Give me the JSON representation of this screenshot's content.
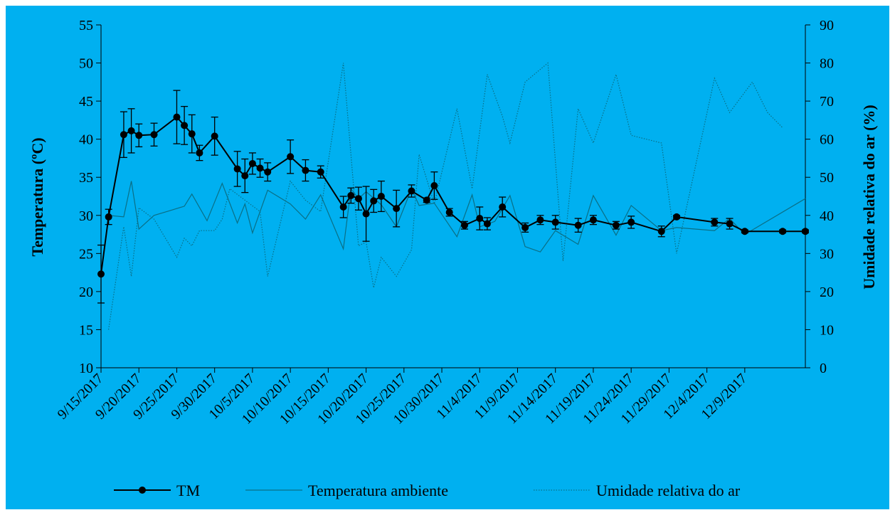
{
  "colors": {
    "background": "#00b0f0",
    "tm": "#000000",
    "temp_ambiente": "#0a6f86",
    "umidade": "#0a6f86"
  },
  "chart_data": {
    "type": "line",
    "title": "",
    "ylabel_left": "Temperatura (ºC)",
    "ylabel_right": "Umidade relativa do ar (%)",
    "ylim_left": [
      10,
      55
    ],
    "yticks_left": [
      "10",
      "15",
      "20",
      "25",
      "30",
      "35",
      "40",
      "45",
      "50",
      "55"
    ],
    "ylim_right": [
      0,
      90
    ],
    "yticks_right": [
      "0",
      "10",
      "20",
      "30",
      "40",
      "50",
      "60",
      "70",
      "80",
      "90"
    ],
    "xlim_days_from_0915": [
      0,
      93
    ],
    "x_tick_labels": [
      "9/15/2017",
      "9/20/2017",
      "9/25/2017",
      "9/30/2017",
      "10/5/2017",
      "10/10/2017",
      "10/15/2017",
      "10/20/2017",
      "10/25/2017",
      "10/30/2017",
      "11/4/2017",
      "11/9/2017",
      "11/14/2017",
      "11/19/2017",
      "11/24/2017",
      "11/29/2017",
      "12/4/2017",
      "12/9/2017"
    ],
    "legend_position": "bottom",
    "series": [
      {
        "name": "TM",
        "style": "solid-markers-errorbars",
        "points": [
          {
            "x": "9/15/2017",
            "y": 22.3,
            "err": 3.8
          },
          {
            "x": "9/16/2017",
            "y": 29.8,
            "err": 1.0
          },
          {
            "x": "9/18/2017",
            "y": 40.6,
            "err": 3.0
          },
          {
            "x": "9/19/2017",
            "y": 41.1,
            "err": 2.9
          },
          {
            "x": "9/20/2017",
            "y": 40.5,
            "err": 1.5
          },
          {
            "x": "9/22/2017",
            "y": 40.6,
            "err": 1.5
          },
          {
            "x": "9/25/2017",
            "y": 42.9,
            "err": 3.5
          },
          {
            "x": "9/26/2017",
            "y": 41.8,
            "err": 2.5
          },
          {
            "x": "9/27/2017",
            "y": 40.7,
            "err": 2.5
          },
          {
            "x": "9/28/2017",
            "y": 38.2,
            "err": 1.0
          },
          {
            "x": "9/30/2017",
            "y": 40.4,
            "err": 2.5
          },
          {
            "x": "10/3/2017",
            "y": 36.1,
            "err": 2.3
          },
          {
            "x": "10/4/2017",
            "y": 35.2,
            "err": 2.2
          },
          {
            "x": "10/5/2017",
            "y": 36.8,
            "err": 1.4
          },
          {
            "x": "10/6/2017",
            "y": 36.2,
            "err": 1.2
          },
          {
            "x": "10/7/2017",
            "y": 35.7,
            "err": 1.2
          },
          {
            "x": "10/10/2017",
            "y": 37.7,
            "err": 2.2
          },
          {
            "x": "10/12/2017",
            "y": 35.9,
            "err": 1.4
          },
          {
            "x": "10/14/2017",
            "y": 35.7,
            "err": 0.8
          },
          {
            "x": "10/17/2017",
            "y": 31.1,
            "err": 1.4
          },
          {
            "x": "10/18/2017",
            "y": 32.6,
            "err": 1.0
          },
          {
            "x": "10/19/2017",
            "y": 32.2,
            "err": 1.5
          },
          {
            "x": "10/20/2017",
            "y": 30.2,
            "err": 3.6
          },
          {
            "x": "10/21/2017",
            "y": 31.9,
            "err": 1.5
          },
          {
            "x": "10/22/2017",
            "y": 32.5,
            "err": 2.0
          },
          {
            "x": "10/24/2017",
            "y": 30.9,
            "err": 2.4
          },
          {
            "x": "10/26/2017",
            "y": 33.2,
            "err": 0.8
          },
          {
            "x": "10/28/2017",
            "y": 32.0,
            "err": 0.3
          },
          {
            "x": "10/29/2017",
            "y": 33.9,
            "err": 1.8
          },
          {
            "x": "10/31/2017",
            "y": 30.4,
            "err": 0.5
          },
          {
            "x": "11/2/2017",
            "y": 28.7,
            "err": 0.5
          },
          {
            "x": "11/4/2017",
            "y": 29.6,
            "err": 1.5
          },
          {
            "x": "11/5/2017",
            "y": 28.9,
            "err": 0.8
          },
          {
            "x": "11/7/2017",
            "y": 31.1,
            "err": 1.3
          },
          {
            "x": "11/10/2017",
            "y": 28.4,
            "err": 0.6
          },
          {
            "x": "11/12/2017",
            "y": 29.4,
            "err": 0.6
          },
          {
            "x": "11/14/2017",
            "y": 29.1,
            "err": 0.9
          },
          {
            "x": "11/17/2017",
            "y": 28.7,
            "err": 0.9
          },
          {
            "x": "11/19/2017",
            "y": 29.4,
            "err": 0.6
          },
          {
            "x": "11/22/2017",
            "y": 28.7,
            "err": 0.5
          },
          {
            "x": "11/24/2017",
            "y": 29.1,
            "err": 0.8
          },
          {
            "x": "11/28/2017",
            "y": 27.9,
            "err": 0.7
          },
          {
            "x": "11/30/2017",
            "y": 29.8,
            "err": 0.2
          },
          {
            "x": "12/5/2017",
            "y": 29.1,
            "err": 0.5
          },
          {
            "x": "12/7/2017",
            "y": 28.9,
            "err": 0.7
          },
          {
            "x": "12/9/2017",
            "y": 27.9,
            "err": 0.2
          },
          {
            "x": "12/14/2017",
            "y": 27.9,
            "err": 0.2
          },
          {
            "x": "12/17/2017",
            "y": 27.9,
            "err": 0.2
          }
        ]
      },
      {
        "name": "Temperatura ambiente",
        "style": "thin-solid",
        "axis": "left",
        "points": [
          {
            "x": "9/16/2017",
            "y": 30.0
          },
          {
            "x": "9/18/2017",
            "y": 29.8
          },
          {
            "x": "9/19/2017",
            "y": 34.5
          },
          {
            "x": "9/20/2017",
            "y": 28.2
          },
          {
            "x": "9/22/2017",
            "y": 30.0
          },
          {
            "x": "9/24/2017",
            "y": 30.6
          },
          {
            "x": "9/26/2017",
            "y": 31.2
          },
          {
            "x": "9/27/2017",
            "y": 32.8
          },
          {
            "x": "9/29/2017",
            "y": 29.3
          },
          {
            "x": "10/1/2017",
            "y": 34.2
          },
          {
            "x": "10/3/2017",
            "y": 29.0
          },
          {
            "x": "10/4/2017",
            "y": 31.5
          },
          {
            "x": "10/5/2017",
            "y": 27.7
          },
          {
            "x": "10/7/2017",
            "y": 33.3
          },
          {
            "x": "10/10/2017",
            "y": 31.5
          },
          {
            "x": "10/12/2017",
            "y": 29.5
          },
          {
            "x": "10/14/2017",
            "y": 32.7
          },
          {
            "x": "10/17/2017",
            "y": 25.6
          },
          {
            "x": "10/18/2017",
            "y": 33.5
          },
          {
            "x": "10/19/2017",
            "y": 32.2
          },
          {
            "x": "10/20/2017",
            "y": 33.1
          },
          {
            "x": "10/22/2017",
            "y": 31.4
          },
          {
            "x": "10/24/2017",
            "y": 28.5
          },
          {
            "x": "10/26/2017",
            "y": 33.5
          },
          {
            "x": "10/27/2017",
            "y": 31.3
          },
          {
            "x": "10/29/2017",
            "y": 31.6
          },
          {
            "x": "11/1/2017",
            "y": 27.2
          },
          {
            "x": "11/3/2017",
            "y": 32.7
          },
          {
            "x": "11/4/2017",
            "y": 28.5
          },
          {
            "x": "11/6/2017",
            "y": 29.2
          },
          {
            "x": "11/8/2017",
            "y": 32.6
          },
          {
            "x": "11/10/2017",
            "y": 25.9
          },
          {
            "x": "11/12/2017",
            "y": 25.2
          },
          {
            "x": "11/14/2017",
            "y": 28.0
          },
          {
            "x": "11/17/2017",
            "y": 26.2
          },
          {
            "x": "11/19/2017",
            "y": 32.6
          },
          {
            "x": "11/22/2017",
            "y": 27.4
          },
          {
            "x": "11/24/2017",
            "y": 31.3
          },
          {
            "x": "11/28/2017",
            "y": 28.0
          },
          {
            "x": "11/30/2017",
            "y": 28.4
          },
          {
            "x": "12/5/2017",
            "y": 28.0
          },
          {
            "x": "12/7/2017",
            "y": 29.6
          },
          {
            "x": "12/9/2017",
            "y": 27.5
          },
          {
            "x": "12/17/2017",
            "y": 32.2
          }
        ]
      },
      {
        "name": "Umidade relativa do ar",
        "style": "dotted",
        "axis": "right",
        "points": [
          {
            "x": "9/16/2017",
            "y": 10
          },
          {
            "x": "9/18/2017",
            "y": 37
          },
          {
            "x": "9/19/2017",
            "y": 24
          },
          {
            "x": "9/20/2017",
            "y": 42
          },
          {
            "x": "9/22/2017",
            "y": 39
          },
          {
            "x": "9/25/2017",
            "y": 29
          },
          {
            "x": "9/26/2017",
            "y": 34
          },
          {
            "x": "9/27/2017",
            "y": 32
          },
          {
            "x": "9/28/2017",
            "y": 36
          },
          {
            "x": "9/30/2017",
            "y": 36
          },
          {
            "x": "10/1/2017",
            "y": 39
          },
          {
            "x": "10/2/2017",
            "y": 47
          },
          {
            "x": "10/4/2017",
            "y": 44
          },
          {
            "x": "10/6/2017",
            "y": 41
          },
          {
            "x": "10/7/2017",
            "y": 24
          },
          {
            "x": "10/10/2017",
            "y": 49
          },
          {
            "x": "10/12/2017",
            "y": 44
          },
          {
            "x": "10/14/2017",
            "y": 41
          },
          {
            "x": "10/17/2017",
            "y": 80
          },
          {
            "x": "10/19/2017",
            "y": 32
          },
          {
            "x": "10/20/2017",
            "y": 33
          },
          {
            "x": "10/21/2017",
            "y": 21
          },
          {
            "x": "10/22/2017",
            "y": 29
          },
          {
            "x": "10/24/2017",
            "y": 24
          },
          {
            "x": "10/26/2017",
            "y": 31
          },
          {
            "x": "10/27/2017",
            "y": 56
          },
          {
            "x": "10/29/2017",
            "y": 43
          },
          {
            "x": "11/1/2017",
            "y": 68
          },
          {
            "x": "11/3/2017",
            "y": 47
          },
          {
            "x": "11/5/2017",
            "y": 77
          },
          {
            "x": "11/7/2017",
            "y": 66
          },
          {
            "x": "11/8/2017",
            "y": 59
          },
          {
            "x": "11/10/2017",
            "y": 75
          },
          {
            "x": "11/13/2017",
            "y": 80
          },
          {
            "x": "11/15/2017",
            "y": 28
          },
          {
            "x": "11/17/2017",
            "y": 68
          },
          {
            "x": "11/19/2017",
            "y": 59
          },
          {
            "x": "11/22/2017",
            "y": 77
          },
          {
            "x": "11/24/2017",
            "y": 61
          },
          {
            "x": "11/28/2017",
            "y": 59
          },
          {
            "x": "11/30/2017",
            "y": 30
          },
          {
            "x": "12/5/2017",
            "y": 76
          },
          {
            "x": "12/7/2017",
            "y": 67
          },
          {
            "x": "12/10/2017",
            "y": 75
          },
          {
            "x": "12/12/2017",
            "y": 67
          },
          {
            "x": "12/14/2017",
            "y": 63
          }
        ]
      }
    ]
  }
}
